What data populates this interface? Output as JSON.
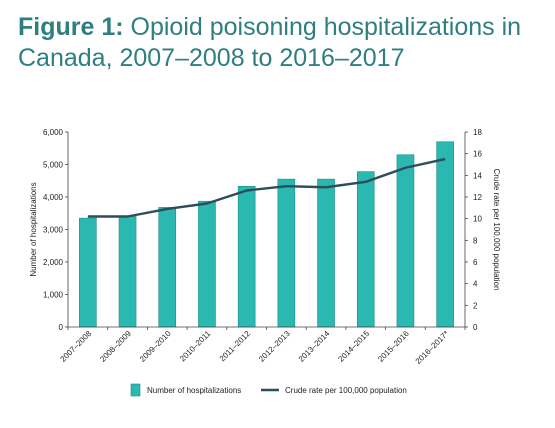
{
  "figure": {
    "label": "Figure 1:",
    "title": "Opioid poisoning hospitalizations in Canada, 2007–2008 to 2016–2017"
  },
  "colors": {
    "title": "#2f7f80",
    "bar_fill": "#2ab8b0",
    "bar_stroke": "#1d8c86",
    "line": "#2e4d5a",
    "axis": "#444444"
  },
  "chart_data": {
    "type": "bar",
    "categories": [
      "2007–2008",
      "2008–2009",
      "2009–2010",
      "2010–2011",
      "2011–2012",
      "2012–2013",
      "2013–2014",
      "2014–2015",
      "2015–2016",
      "2016–2017*"
    ],
    "series": [
      {
        "name": "Number of hospitalizations",
        "type": "bar",
        "axis": "left",
        "values": [
          3350,
          3400,
          3680,
          3870,
          4330,
          4550,
          4550,
          4780,
          5300,
          5700
        ]
      },
      {
        "name": "Crude rate per 100,000 population",
        "type": "line",
        "axis": "right",
        "values": [
          10.2,
          10.2,
          10.9,
          11.4,
          12.6,
          13.0,
          12.9,
          13.4,
          14.7,
          15.5
        ]
      }
    ],
    "ylabel": "Number of hospitalizations",
    "y2label": "Crude rate per 100,000 population",
    "ylim": [
      0,
      6000
    ],
    "y2lim": [
      0,
      18
    ],
    "yticks": [
      "0",
      "1,000",
      "2,000",
      "3,000",
      "4,000",
      "5,000",
      "6,000"
    ],
    "y2ticks": [
      "0",
      "2",
      "4",
      "6",
      "8",
      "10",
      "12",
      "14",
      "16",
      "18"
    ],
    "grid": false,
    "legend_position": "bottom"
  }
}
